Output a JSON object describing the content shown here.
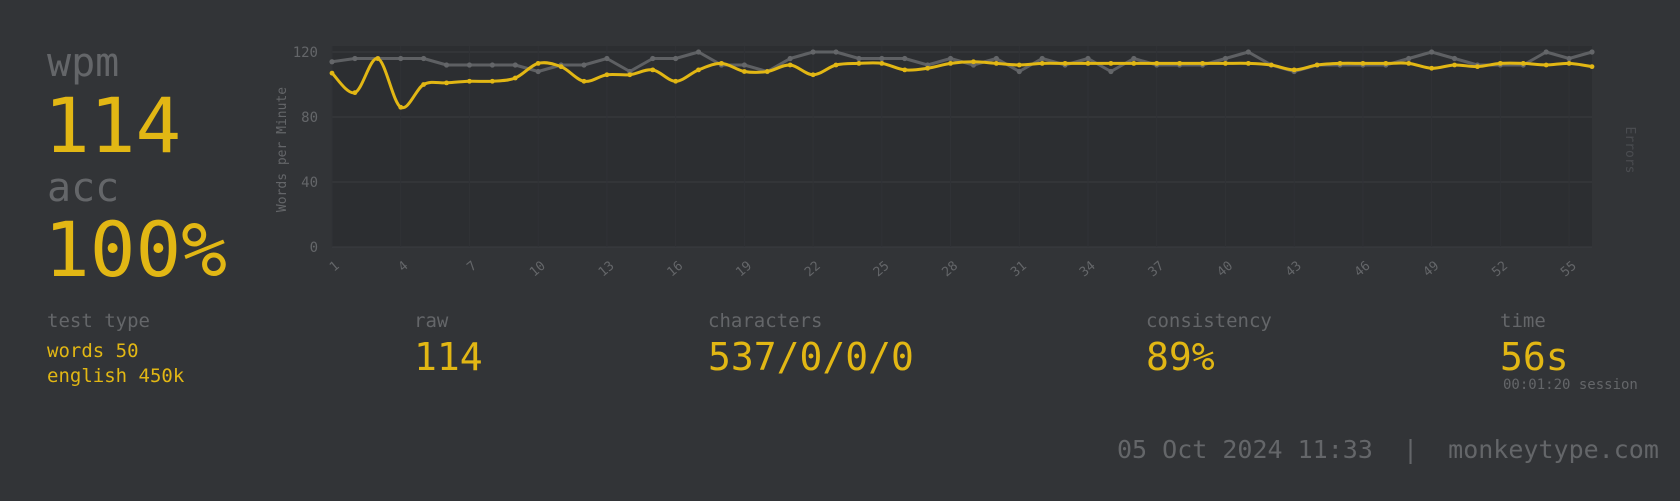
{
  "stats": {
    "wpm_label": "wpm",
    "wpm_value": "114",
    "acc_label": "acc",
    "acc_value": "100%",
    "test_type_label": "test type",
    "test_mode": "words 50",
    "test_language": "english 450k",
    "raw_label": "raw",
    "raw_value": "114",
    "characters_label": "characters",
    "characters_value": "537/0/0/0",
    "consistency_label": "consistency",
    "consistency_value": "89%",
    "time_label": "time",
    "time_value": "56s",
    "session_time": "00:01:20 session"
  },
  "footer": {
    "date": "05 Oct 2024 11:33",
    "separator": "|",
    "site": "monkeytype.com"
  },
  "colors": {
    "background": "#323437",
    "plot_background": "#2c2e31",
    "accent": "#e2b714",
    "sub": "#646669",
    "raw_line": "#646669"
  },
  "chart_data": {
    "type": "line",
    "ylabel": "Words per Minute",
    "y2label": "Errors",
    "ylim": [
      0,
      120
    ],
    "yticks": [
      0,
      40,
      80,
      120
    ],
    "xlim": [
      1,
      56
    ],
    "xticks": [
      1,
      4,
      7,
      10,
      13,
      16,
      19,
      22,
      25,
      28,
      31,
      34,
      37,
      40,
      43,
      46,
      49,
      52,
      55
    ],
    "grid": true,
    "series": [
      {
        "name": "raw",
        "color": "#646669",
        "values": [
          114,
          116,
          116,
          116,
          116,
          112,
          112,
          112,
          112,
          108,
          112,
          112,
          116,
          108,
          116,
          116,
          120,
          112,
          112,
          108,
          116,
          120,
          120,
          116,
          116,
          116,
          112,
          116,
          112,
          116,
          108,
          116,
          112,
          116,
          108,
          116,
          112,
          112,
          112,
          116,
          120,
          112,
          108,
          112,
          112,
          112,
          112,
          116,
          120,
          116,
          112,
          112,
          112,
          120,
          116,
          120
        ]
      },
      {
        "name": "wpm",
        "color": "#e2b714",
        "values": [
          107,
          95,
          116,
          86,
          100,
          101,
          102,
          102,
          104,
          113,
          111,
          102,
          106,
          106,
          109,
          102,
          109,
          113,
          108,
          108,
          112,
          106,
          112,
          113,
          113,
          109,
          110,
          113,
          114,
          113,
          112,
          113,
          113,
          113,
          113,
          113,
          113,
          113,
          113,
          113,
          113,
          112,
          109,
          112,
          113,
          113,
          113,
          113,
          110,
          112,
          111,
          113,
          113,
          112,
          113,
          111
        ]
      }
    ]
  }
}
